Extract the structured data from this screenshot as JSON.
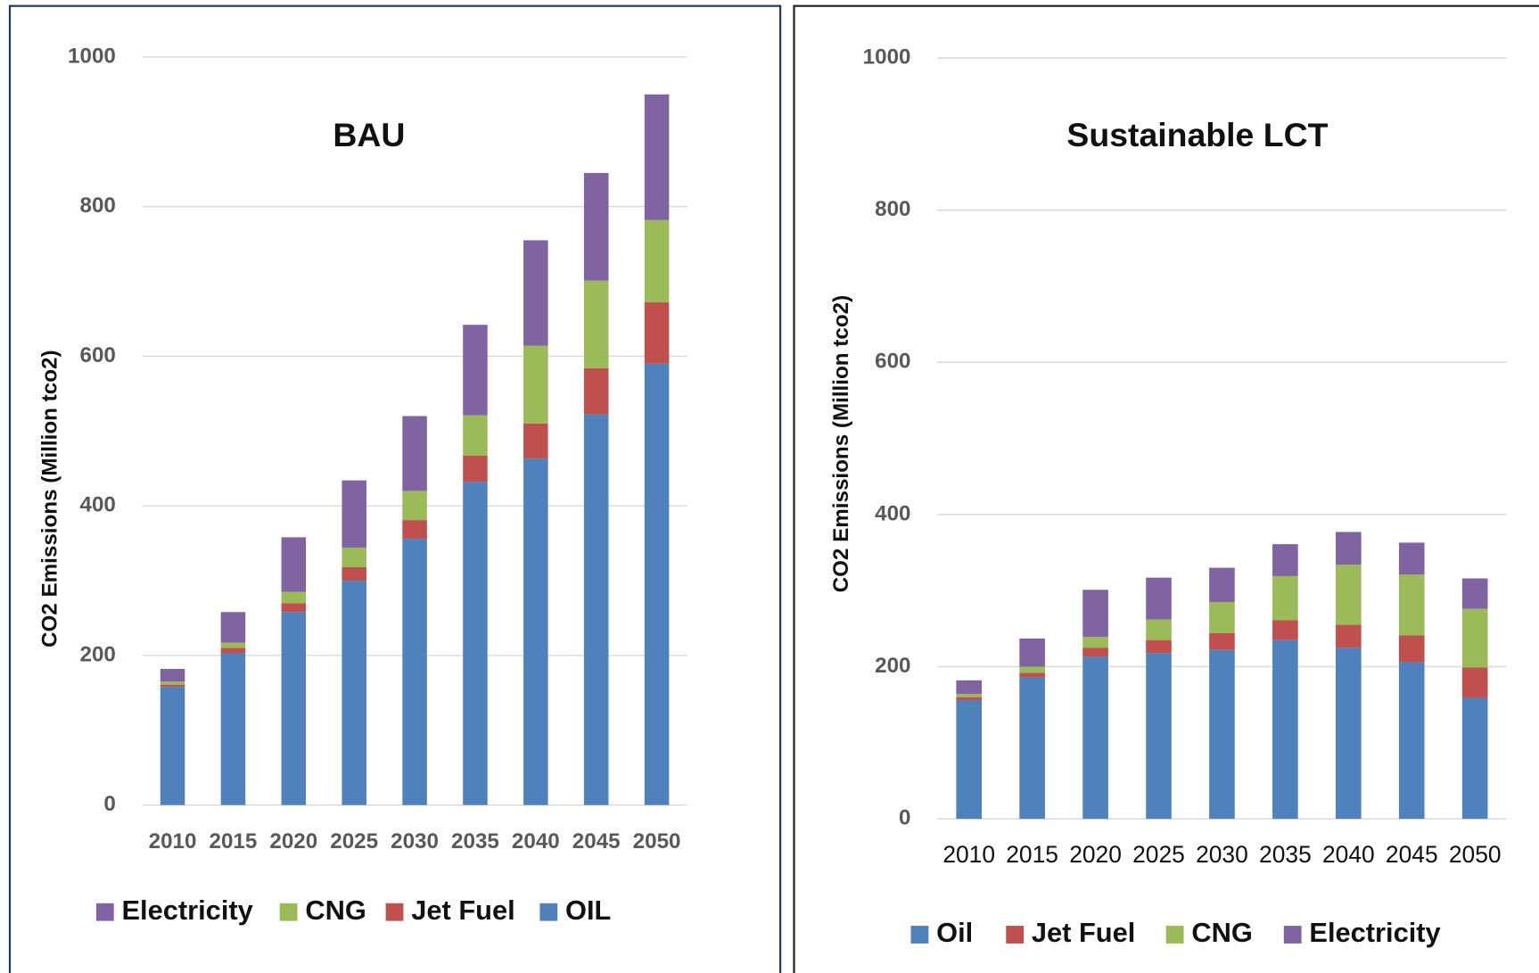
{
  "chart_data": [
    {
      "type": "stacked_bar",
      "title": "BAU",
      "y_label": "CO2 Emissions  (Million tco2)",
      "categories": [
        "2010",
        "2015",
        "2020",
        "2025",
        "2030",
        "2035",
        "2040",
        "2045",
        "2050"
      ],
      "series": [
        {
          "name": "OIL",
          "color": "#4f81bd",
          "values": [
            158,
            203,
            258,
            300,
            356,
            432,
            463,
            522,
            590
          ]
        },
        {
          "name": "Jet Fuel",
          "color": "#c0504d",
          "values": [
            3,
            7,
            12,
            18,
            25,
            35,
            47,
            62,
            82
          ]
        },
        {
          "name": "CNG",
          "color": "#9bbb59",
          "values": [
            4,
            7,
            15,
            26,
            39,
            54,
            104,
            117,
            110
          ]
        },
        {
          "name": "Electricity",
          "color": "#8064a2",
          "values": [
            17,
            41,
            73,
            90,
            100,
            121,
            141,
            144,
            168
          ]
        }
      ],
      "legend_reversed": true,
      "ylim": [
        0,
        1000
      ],
      "yticks": [
        0,
        200,
        400,
        600,
        800,
        1000
      ],
      "grid": true
    },
    {
      "type": "stacked_bar",
      "title": "Sustainable LCT",
      "y_label": "CO2 Emissions  (Million tco2)",
      "categories": [
        "2010",
        "2015",
        "2020",
        "2025",
        "2030",
        "2035",
        "2040",
        "2045",
        "2050"
      ],
      "series": [
        {
          "name": "Oil",
          "color": "#4f81bd",
          "values": [
            156,
            186,
            213,
            218,
            222,
            235,
            225,
            206,
            159
          ]
        },
        {
          "name": "Jet Fuel",
          "color": "#c0504d",
          "values": [
            4,
            6,
            12,
            17,
            22,
            26,
            30,
            35,
            40
          ]
        },
        {
          "name": "CNG",
          "color": "#9bbb59",
          "values": [
            4,
            8,
            14,
            27,
            41,
            58,
            79,
            80,
            77
          ]
        },
        {
          "name": "Electricity",
          "color": "#8064a2",
          "values": [
            18,
            37,
            62,
            55,
            45,
            42,
            43,
            42,
            40
          ]
        }
      ],
      "legend_reversed": false,
      "ylim": [
        0,
        1000
      ],
      "yticks": [
        0,
        200,
        400,
        600,
        800,
        1000
      ],
      "grid": true
    }
  ]
}
